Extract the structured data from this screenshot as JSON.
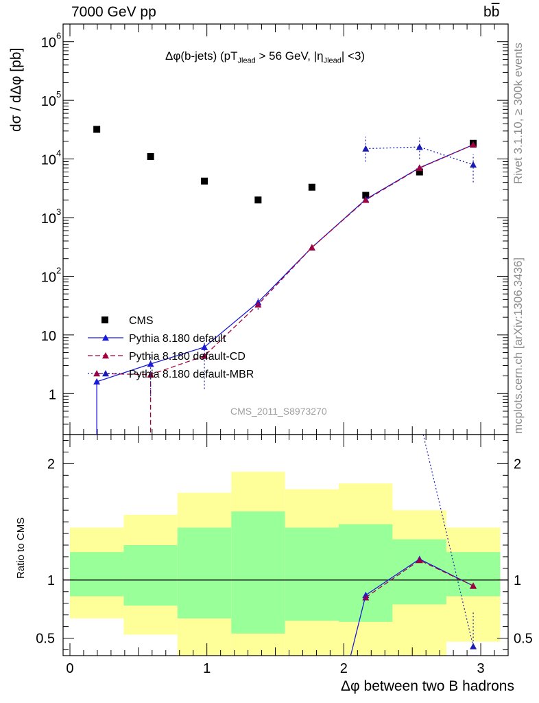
{
  "header": {
    "energy_label": "7000 GeV pp",
    "process_label": "bb̄"
  },
  "side_labels": {
    "rivet": "Rivet 3.1.10, ≥ 300k events",
    "source": "mcplots.cern.ch [arXiv:1306.3436]"
  },
  "colors": {
    "cms": "#000000",
    "default": "#1a1ad6",
    "cd": "#a0003c",
    "mbr": "#1a1ab4",
    "band_yellow": "#ffff99",
    "band_green": "#99ff99"
  },
  "chart_data": [
    {
      "type": "scatter",
      "title": "Δφ(b-jets) (pT_Jlead > 56 GeV, |η_Jlead| <3)",
      "title_parts": {
        "pre": "Δφ(b-jets) (pT",
        "sub1": "Jlead",
        "mid": " >  56 GeV, |η",
        "sub2": "Jlead",
        "post": "| <3)"
      },
      "ylabel": "dσ / dΔφ [pb]",
      "yscale": "log",
      "ylim": [
        0.2,
        2000000
      ],
      "xlim": [
        -0.05,
        3.2
      ],
      "watermark": "CMS_2011_S8973270",
      "y_ticks": [
        {
          "v": 1,
          "label": "1"
        },
        {
          "v": 10,
          "label": "10"
        },
        {
          "v": 100,
          "label": "10",
          "exp": "2"
        },
        {
          "v": 1000,
          "label": "10",
          "exp": "3"
        },
        {
          "v": 10000,
          "label": "10",
          "exp": "4"
        },
        {
          "v": 100000,
          "label": "10",
          "exp": "5"
        },
        {
          "v": 1000000,
          "label": "10",
          "exp": "6"
        }
      ],
      "series": [
        {
          "name": "CMS",
          "style": "data",
          "x": [
            0.196,
            0.589,
            0.982,
            1.374,
            1.767,
            2.16,
            2.553,
            2.945
          ],
          "y": [
            32000,
            11000,
            4200,
            2000,
            3300,
            2400,
            6000,
            18500
          ]
        },
        {
          "name": "Pythia 8.180 default",
          "style": "solid",
          "x": [
            0.196,
            0.25,
            0.589,
            0.982,
            1.374,
            1.767,
            2.16,
            2.553,
            2.945
          ],
          "y": [
            1.6,
            1.75,
            3.2,
            6.2,
            36,
            310,
            2050,
            7100,
            17500
          ]
        },
        {
          "name": "Pythia 8.180 default-CD",
          "style": "dashed",
          "x": [
            0.196,
            0.589,
            0.982,
            1.374,
            1.767,
            2.16,
            2.553,
            2.945
          ],
          "y": [
            2.2,
            2.1,
            4.4,
            33,
            310,
            2000,
            7000,
            17500
          ]
        },
        {
          "name": "Pythia 8.180 default-MBR",
          "style": "dotted",
          "x": [
            2.16,
            2.553,
            2.945
          ],
          "y": [
            15000,
            16000,
            8000
          ]
        }
      ]
    },
    {
      "type": "scatter",
      "ylabel": "Ratio to CMS",
      "xlabel": "Δφ between two B hadrons",
      "ylim": [
        0.35,
        2.25
      ],
      "xlim": [
        -0.05,
        3.2
      ],
      "y_ticks": [
        0.5,
        1,
        2
      ],
      "x_ticks": [
        0,
        1,
        2,
        3
      ],
      "bands": {
        "edges": [
          0,
          0.393,
          0.785,
          1.178,
          1.571,
          1.963,
          2.356,
          2.749,
          3.142
        ],
        "yellow_lo": [
          0.67,
          0.53,
          0.35,
          0.35,
          0.35,
          0.35,
          0.35,
          0.47,
          0.67
        ],
        "yellow_hi": [
          1.45,
          1.56,
          1.75,
          1.93,
          1.78,
          1.83,
          1.6,
          1.45,
          1.45
        ],
        "green_lo": [
          0.86,
          0.78,
          0.67,
          0.54,
          0.65,
          0.64,
          0.79,
          0.86,
          0.86
        ],
        "green_hi": [
          1.24,
          1.3,
          1.45,
          1.59,
          1.45,
          1.48,
          1.35,
          1.24,
          1.24
        ]
      },
      "series": [
        {
          "name": "Pythia 8.180 default",
          "style": "solid",
          "x": [
            2.16,
            2.553,
            2.945
          ],
          "y": [
            0.87,
            1.18,
            0.95
          ]
        },
        {
          "name": "Pythia 8.180 default-CD",
          "style": "dashed",
          "x": [
            2.16,
            2.553,
            2.945
          ],
          "y": [
            0.85,
            1.17,
            0.95
          ]
        },
        {
          "name": "Pythia 8.180 default-MBR",
          "style": "dotted",
          "x": [
            2.945
          ],
          "y": [
            0.43
          ]
        }
      ]
    }
  ]
}
